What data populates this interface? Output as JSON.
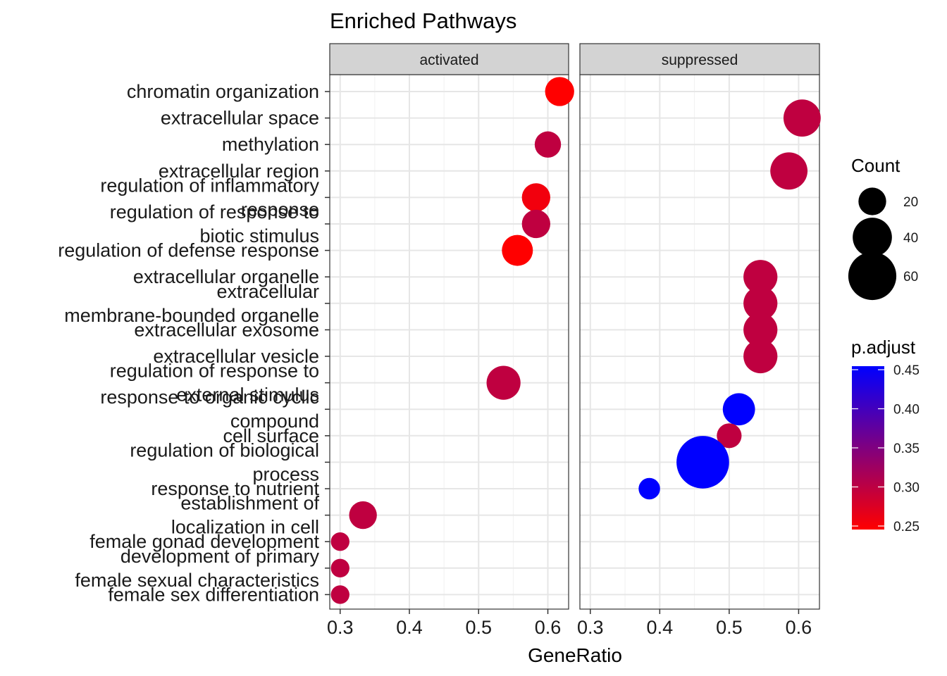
{
  "chart_data": {
    "type": "scatter",
    "title": "Enriched Pathways",
    "xlabel": "GeneRatio",
    "ylabel": "",
    "xlim": [
      0.285,
      0.63
    ],
    "x_ticks": [
      0.3,
      0.4,
      0.5,
      0.6
    ],
    "x_tick_labels": [
      "0.3",
      "0.4",
      "0.5",
      "0.6"
    ],
    "grid": true,
    "facets": [
      "activated",
      "suppressed"
    ],
    "categories": [
      "chromatin organization",
      "extracellular space",
      "methylation",
      "extracellular region",
      "regulation of inflammatory response",
      "regulation of response to biotic stimulus",
      "regulation of defense response",
      "extracellular organelle",
      "extracellular membrane-bounded organelle",
      "extracellular exosome",
      "extracellular vesicle",
      "regulation of response to external stimulus",
      "response to organic cyclic compound",
      "cell surface",
      "regulation of biological process",
      "response to nutrient",
      "establishment of localization in cell",
      "female gonad development",
      "development of primary female sexual characteristics",
      "female sex differentiation"
    ],
    "category_label_lines": [
      [
        "chromatin organization"
      ],
      [
        "extracellular space"
      ],
      [
        "methylation"
      ],
      [
        "extracellular region"
      ],
      [
        "regulation of inflammatory",
        "response"
      ],
      [
        "regulation of response to",
        "biotic stimulus"
      ],
      [
        "regulation of defense response"
      ],
      [
        "extracellular organelle"
      ],
      [
        "extracellular",
        "membrane-bounded organelle"
      ],
      [
        "extracellular exosome"
      ],
      [
        "extracellular vesicle"
      ],
      [
        "regulation of response to",
        "external stimulus"
      ],
      [
        "response to organic cyclic",
        "compound"
      ],
      [
        "cell surface"
      ],
      [
        "regulation of biological",
        "process"
      ],
      [
        "response to nutrient"
      ],
      [
        "establishment of",
        "localization in cell"
      ],
      [
        "female gonad development"
      ],
      [
        "development of primary",
        "female sexual characteristics"
      ],
      [
        "female sex differentiation"
      ]
    ],
    "points": [
      {
        "facet": "activated",
        "category": "chromatin organization",
        "x": 0.617,
        "count": 22,
        "p_adjust": 0.25
      },
      {
        "facet": "activated",
        "category": "methylation",
        "x": 0.6,
        "count": 18,
        "p_adjust": 0.3
      },
      {
        "facet": "activated",
        "category": "regulation of inflammatory response",
        "x": 0.583,
        "count": 21,
        "p_adjust": 0.26
      },
      {
        "facet": "activated",
        "category": "regulation of response to biotic stimulus",
        "x": 0.583,
        "count": 21,
        "p_adjust": 0.3
      },
      {
        "facet": "activated",
        "category": "regulation of defense response",
        "x": 0.556,
        "count": 25,
        "p_adjust": 0.25
      },
      {
        "facet": "activated",
        "category": "regulation of response to external stimulus",
        "x": 0.536,
        "count": 30,
        "p_adjust": 0.3
      },
      {
        "facet": "activated",
        "category": "establishment of localization in cell",
        "x": 0.333,
        "count": 20,
        "p_adjust": 0.3
      },
      {
        "facet": "activated",
        "category": "female gonad development",
        "x": 0.3,
        "count": 9,
        "p_adjust": 0.3
      },
      {
        "facet": "activated",
        "category": "development of primary female sexual characteristics",
        "x": 0.3,
        "count": 9,
        "p_adjust": 0.3
      },
      {
        "facet": "activated",
        "category": "female sex differentiation",
        "x": 0.3,
        "count": 9,
        "p_adjust": 0.3
      },
      {
        "facet": "suppressed",
        "category": "extracellular space",
        "x": 0.605,
        "count": 36,
        "p_adjust": 0.3
      },
      {
        "facet": "suppressed",
        "category": "extracellular region",
        "x": 0.586,
        "count": 36,
        "p_adjust": 0.3
      },
      {
        "facet": "suppressed",
        "category": "extracellular organelle",
        "x": 0.545,
        "count": 30,
        "p_adjust": 0.3
      },
      {
        "facet": "suppressed",
        "category": "extracellular membrane-bounded organelle",
        "x": 0.545,
        "count": 30,
        "p_adjust": 0.3
      },
      {
        "facet": "suppressed",
        "category": "extracellular exosome",
        "x": 0.545,
        "count": 30,
        "p_adjust": 0.3
      },
      {
        "facet": "suppressed",
        "category": "extracellular vesicle",
        "x": 0.545,
        "count": 30,
        "p_adjust": 0.3
      },
      {
        "facet": "suppressed",
        "category": "response to organic cyclic compound",
        "x": 0.514,
        "count": 27,
        "p_adjust": 0.45
      },
      {
        "facet": "suppressed",
        "category": "cell surface",
        "x": 0.5,
        "count": 16,
        "p_adjust": 0.3
      },
      {
        "facet": "suppressed",
        "category": "regulation of biological process",
        "x": 0.462,
        "count": 72,
        "p_adjust": 0.45
      },
      {
        "facet": "suppressed",
        "category": "response to nutrient",
        "x": 0.385,
        "count": 12,
        "p_adjust": 0.45
      }
    ],
    "size_legend": {
      "title": "Count",
      "breaks": [
        20,
        40,
        60
      ],
      "labels": [
        "20",
        "40",
        "60"
      ]
    },
    "color_legend": {
      "title": "p.adjust",
      "range": [
        0.25,
        0.45
      ],
      "breaks": [
        0.25,
        0.3,
        0.35,
        0.4,
        0.45
      ],
      "labels": [
        "0.25",
        "0.30",
        "0.35",
        "0.40",
        "0.45"
      ],
      "low_color": "#ff0000",
      "high_color": "#0000ff"
    },
    "legend_position": "right"
  }
}
